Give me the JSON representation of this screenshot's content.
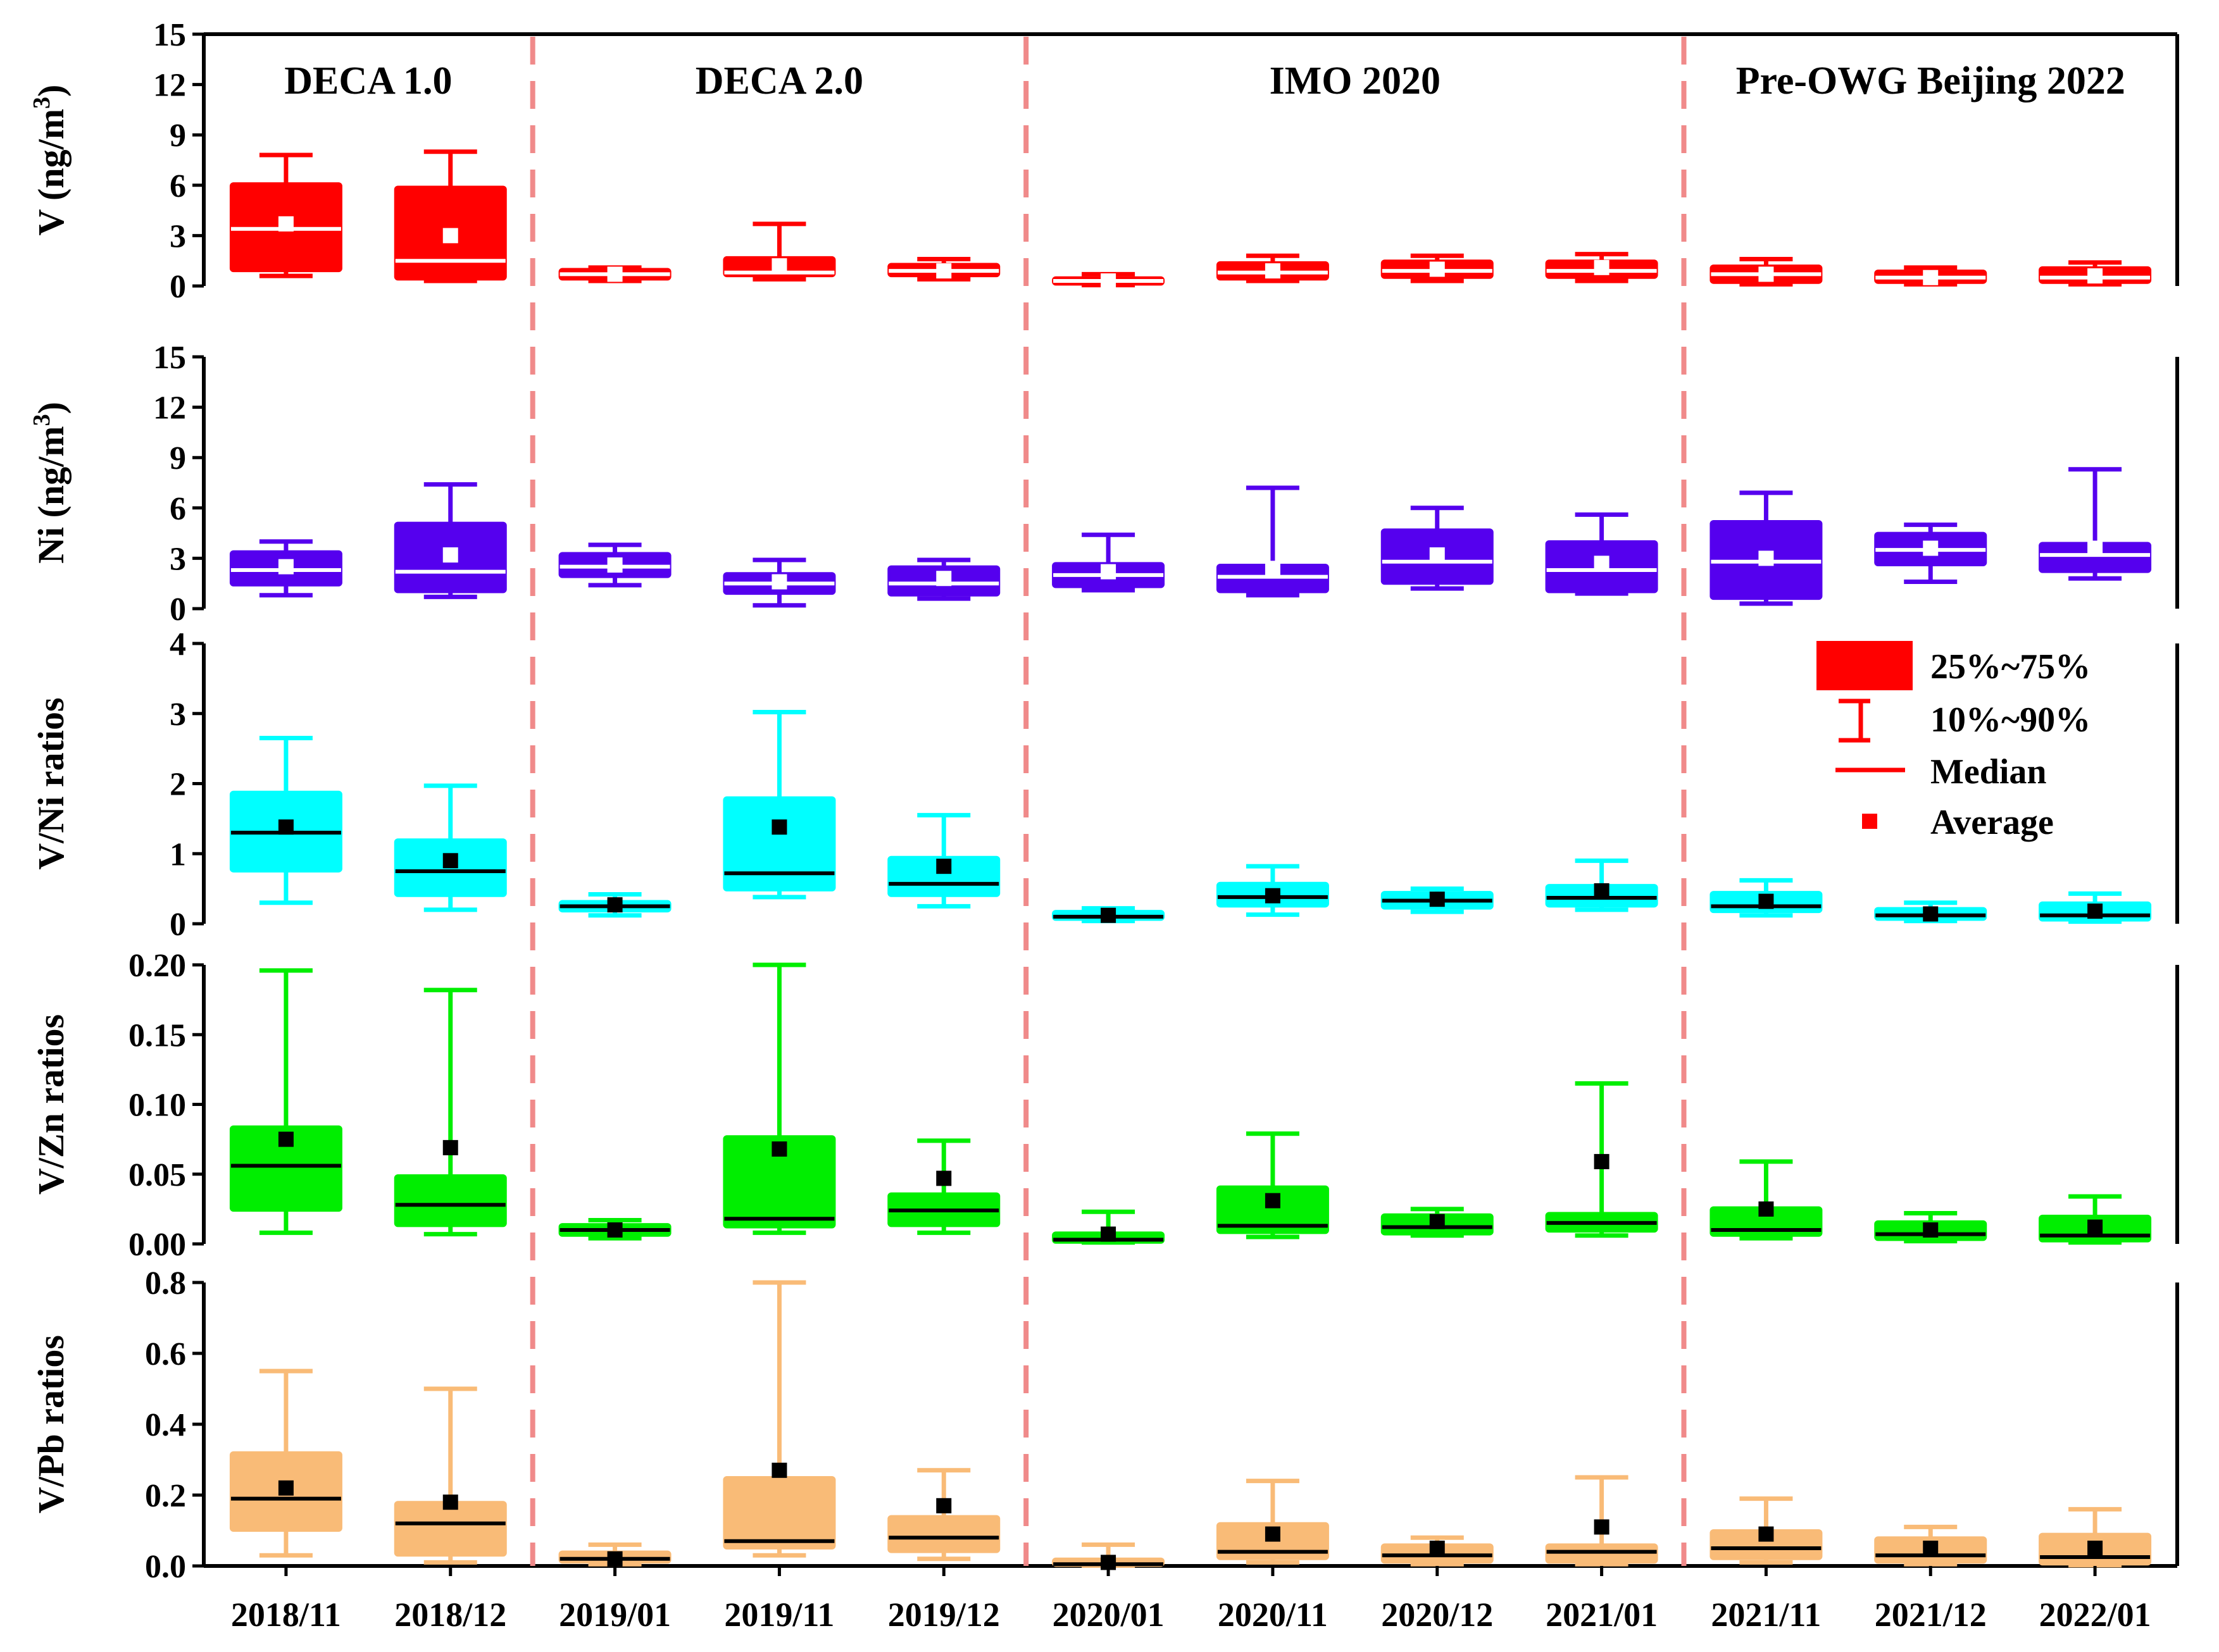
{
  "chart_data": {
    "type": "box",
    "categories": [
      "2018/11",
      "2018/12",
      "2019/01",
      "2019/11",
      "2019/12",
      "2020/01",
      "2020/11",
      "2020/12",
      "2021/01",
      "2021/11",
      "2021/12",
      "2022/01"
    ],
    "eras": [
      {
        "label": "DECA 1.0",
        "first": 0,
        "last": 1
      },
      {
        "label": "DECA 2.0",
        "first": 2,
        "last": 4
      },
      {
        "label": "IMO 2020",
        "first": 5,
        "last": 8
      },
      {
        "label": "Pre-OWG Beijing 2022",
        "first": 9,
        "last": 11
      }
    ],
    "legend": {
      "items": [
        "25%~75%",
        "10%~90%",
        "Median",
        "Average"
      ],
      "color": "#ff0000"
    },
    "panels": [
      {
        "id": "v",
        "ylabel": "V (ng/m³)",
        "ylabel_main": "V (ng/m",
        "ylabel_sup": "3",
        "ylabel_end": ")",
        "ylim": [
          0,
          15
        ],
        "yticks": [
          0,
          3,
          6,
          9,
          12,
          15
        ],
        "tick_format": "int",
        "color": "#ff0000",
        "median_color": "#ffffff",
        "mean_color": "#ffffff",
        "boxes": [
          {
            "q1": 0.9,
            "q3": 6.1,
            "median": 3.4,
            "p10": 0.6,
            "p90": 7.8,
            "mean": 3.7
          },
          {
            "q1": 0.4,
            "q3": 5.9,
            "median": 1.5,
            "p10": 0.3,
            "p90": 8.0,
            "mean": 3.0
          },
          {
            "q1": 0.4,
            "q3": 1.0,
            "median": 0.7,
            "p10": 0.3,
            "p90": 1.1,
            "mean": 0.7
          },
          {
            "q1": 0.6,
            "q3": 1.7,
            "median": 0.8,
            "p10": 0.4,
            "p90": 3.7,
            "mean": 1.2
          },
          {
            "q1": 0.6,
            "q3": 1.3,
            "median": 0.9,
            "p10": 0.4,
            "p90": 1.6,
            "mean": 0.9
          },
          {
            "q1": 0.1,
            "q3": 0.5,
            "median": 0.3,
            "p10": 0.05,
            "p90": 0.7,
            "mean": 0.3
          },
          {
            "q1": 0.4,
            "q3": 1.4,
            "median": 0.8,
            "p10": 0.3,
            "p90": 1.8,
            "mean": 0.9
          },
          {
            "q1": 0.5,
            "q3": 1.5,
            "median": 0.9,
            "p10": 0.3,
            "p90": 1.8,
            "mean": 1.0
          },
          {
            "q1": 0.5,
            "q3": 1.5,
            "median": 0.9,
            "p10": 0.3,
            "p90": 1.9,
            "mean": 1.1
          },
          {
            "q1": 0.2,
            "q3": 1.2,
            "median": 0.7,
            "p10": 0.1,
            "p90": 1.6,
            "mean": 0.7
          },
          {
            "q1": 0.2,
            "q3": 0.9,
            "median": 0.5,
            "p10": 0.1,
            "p90": 1.1,
            "mean": 0.5
          },
          {
            "q1": 0.2,
            "q3": 1.1,
            "median": 0.5,
            "p10": 0.1,
            "p90": 1.4,
            "mean": 0.6
          }
        ]
      },
      {
        "id": "ni",
        "ylabel": "Ni (ng/m³)",
        "ylabel_main": "Ni (ng/m",
        "ylabel_sup": "3",
        "ylabel_end": ")",
        "ylim": [
          0,
          15
        ],
        "yticks": [
          0,
          3,
          6,
          9,
          12,
          15
        ],
        "tick_format": "int",
        "color": "#5500ee",
        "median_color": "#ffffff",
        "mean_color": "#ffffff",
        "boxes": [
          {
            "q1": 1.4,
            "q3": 3.4,
            "median": 2.3,
            "p10": 0.8,
            "p90": 4.0,
            "mean": 2.5
          },
          {
            "q1": 1.0,
            "q3": 5.1,
            "median": 2.2,
            "p10": 0.7,
            "p90": 7.4,
            "mean": 3.2
          },
          {
            "q1": 1.9,
            "q3": 3.3,
            "median": 2.5,
            "p10": 1.4,
            "p90": 3.8,
            "mean": 2.6
          },
          {
            "q1": 0.9,
            "q3": 2.1,
            "median": 1.5,
            "p10": 0.2,
            "p90": 2.9,
            "mean": 1.6
          },
          {
            "q1": 0.8,
            "q3": 2.5,
            "median": 1.5,
            "p10": 0.6,
            "p90": 2.9,
            "mean": 1.8
          },
          {
            "q1": 1.3,
            "q3": 2.7,
            "median": 2.0,
            "p10": 1.1,
            "p90": 4.4,
            "mean": 2.2
          },
          {
            "q1": 1.0,
            "q3": 2.6,
            "median": 1.9,
            "p10": 0.8,
            "p90": 7.2,
            "mean": 2.4
          },
          {
            "q1": 1.5,
            "q3": 4.7,
            "median": 2.8,
            "p10": 1.2,
            "p90": 6.0,
            "mean": 3.2
          },
          {
            "q1": 1.0,
            "q3": 4.0,
            "median": 2.3,
            "p10": 0.9,
            "p90": 5.6,
            "mean": 2.7
          },
          {
            "q1": 0.6,
            "q3": 5.2,
            "median": 2.8,
            "p10": 0.3,
            "p90": 6.9,
            "mean": 3.0
          },
          {
            "q1": 2.6,
            "q3": 4.5,
            "median": 3.5,
            "p10": 1.6,
            "p90": 5.0,
            "mean": 3.6
          },
          {
            "q1": 2.2,
            "q3": 3.9,
            "median": 3.2,
            "p10": 1.8,
            "p90": 8.3,
            "mean": 3.6
          }
        ]
      },
      {
        "id": "v_ni",
        "ylabel": "V/Ni ratios",
        "ylabel_main": "V/Ni ratios",
        "ylim": [
          0,
          4
        ],
        "yticks": [
          0,
          1,
          2,
          3,
          4
        ],
        "tick_format": "int",
        "color": "#00ffff",
        "median_color": "#000000",
        "mean_color": "#000000",
        "boxes": [
          {
            "q1": 0.75,
            "q3": 1.88,
            "median": 1.3,
            "p10": 0.3,
            "p90": 2.65,
            "mean": 1.38
          },
          {
            "q1": 0.4,
            "q3": 1.2,
            "median": 0.75,
            "p10": 0.2,
            "p90": 1.97,
            "mean": 0.9
          },
          {
            "q1": 0.18,
            "q3": 0.32,
            "median": 0.25,
            "p10": 0.12,
            "p90": 0.42,
            "mean": 0.27
          },
          {
            "q1": 0.48,
            "q3": 1.8,
            "median": 0.72,
            "p10": 0.38,
            "p90": 3.02,
            "mean": 1.38
          },
          {
            "q1": 0.4,
            "q3": 0.95,
            "median": 0.57,
            "p10": 0.25,
            "p90": 1.55,
            "mean": 0.82
          },
          {
            "q1": 0.06,
            "q3": 0.18,
            "median": 0.1,
            "p10": 0.04,
            "p90": 0.22,
            "mean": 0.12
          },
          {
            "q1": 0.25,
            "q3": 0.58,
            "median": 0.38,
            "p10": 0.13,
            "p90": 0.82,
            "mean": 0.4
          },
          {
            "q1": 0.22,
            "q3": 0.45,
            "median": 0.33,
            "p10": 0.17,
            "p90": 0.5,
            "mean": 0.35
          },
          {
            "q1": 0.25,
            "q3": 0.55,
            "median": 0.37,
            "p10": 0.2,
            "p90": 0.9,
            "mean": 0.47
          },
          {
            "q1": 0.17,
            "q3": 0.45,
            "median": 0.25,
            "p10": 0.12,
            "p90": 0.62,
            "mean": 0.32
          },
          {
            "q1": 0.06,
            "q3": 0.22,
            "median": 0.12,
            "p10": 0.04,
            "p90": 0.3,
            "mean": 0.14
          },
          {
            "q1": 0.05,
            "q3": 0.3,
            "median": 0.12,
            "p10": 0.03,
            "p90": 0.43,
            "mean": 0.18
          }
        ]
      },
      {
        "id": "v_zn",
        "ylabel": "V/Zn ratios",
        "ylabel_main": "V/Zn ratios",
        "ylim": [
          0,
          0.2
        ],
        "yticks": [
          0,
          0.05,
          0.1,
          0.15,
          0.2
        ],
        "tick_format": "2dp",
        "color": "#00ee00",
        "median_color": "#000000",
        "mean_color": "#000000",
        "boxes": [
          {
            "q1": 0.024,
            "q3": 0.084,
            "median": 0.056,
            "p10": 0.008,
            "p90": 0.196,
            "mean": 0.075
          },
          {
            "q1": 0.013,
            "q3": 0.049,
            "median": 0.028,
            "p10": 0.007,
            "p90": 0.182,
            "mean": 0.069
          },
          {
            "q1": 0.006,
            "q3": 0.014,
            "median": 0.01,
            "p10": 0.004,
            "p90": 0.017,
            "mean": 0.01
          },
          {
            "q1": 0.012,
            "q3": 0.077,
            "median": 0.018,
            "p10": 0.008,
            "p90": 0.2,
            "mean": 0.068
          },
          {
            "q1": 0.013,
            "q3": 0.036,
            "median": 0.024,
            "p10": 0.008,
            "p90": 0.074,
            "mean": 0.047
          },
          {
            "q1": 0.001,
            "q3": 0.008,
            "median": 0.003,
            "p10": 0.001,
            "p90": 0.023,
            "mean": 0.007
          },
          {
            "q1": 0.008,
            "q3": 0.041,
            "median": 0.013,
            "p10": 0.005,
            "p90": 0.079,
            "mean": 0.031
          },
          {
            "q1": 0.007,
            "q3": 0.021,
            "median": 0.012,
            "p10": 0.006,
            "p90": 0.025,
            "mean": 0.016
          },
          {
            "q1": 0.009,
            "q3": 0.022,
            "median": 0.015,
            "p10": 0.006,
            "p90": 0.115,
            "mean": 0.059
          },
          {
            "q1": 0.006,
            "q3": 0.026,
            "median": 0.01,
            "p10": 0.004,
            "p90": 0.059,
            "mean": 0.025
          },
          {
            "q1": 0.003,
            "q3": 0.016,
            "median": 0.007,
            "p10": 0.002,
            "p90": 0.022,
            "mean": 0.01
          },
          {
            "q1": 0.002,
            "q3": 0.02,
            "median": 0.006,
            "p10": 0.001,
            "p90": 0.034,
            "mean": 0.012
          }
        ]
      },
      {
        "id": "v_pb",
        "ylabel": "V/Pb ratios",
        "ylabel_main": "V/Pb ratios",
        "ylim": [
          0,
          0.8
        ],
        "yticks": [
          0,
          0.2,
          0.4,
          0.6,
          0.8
        ],
        "tick_format": "1dp",
        "color": "#f9bb77",
        "median_color": "#000000",
        "mean_color": "#000000",
        "boxes": [
          {
            "q1": 0.1,
            "q3": 0.32,
            "median": 0.19,
            "p10": 0.03,
            "p90": 0.55,
            "mean": 0.22
          },
          {
            "q1": 0.03,
            "q3": 0.18,
            "median": 0.12,
            "p10": 0.01,
            "p90": 0.5,
            "mean": 0.18
          },
          {
            "q1": 0.01,
            "q3": 0.04,
            "median": 0.02,
            "p10": 0.005,
            "p90": 0.06,
            "mean": 0.02
          },
          {
            "q1": 0.05,
            "q3": 0.25,
            "median": 0.07,
            "p10": 0.03,
            "p90": 0.8,
            "mean": 0.27
          },
          {
            "q1": 0.04,
            "q3": 0.14,
            "median": 0.08,
            "p10": 0.02,
            "p90": 0.27,
            "mean": 0.17
          },
          {
            "q1": 0.001,
            "q3": 0.02,
            "median": 0.005,
            "p10": 0.001,
            "p90": 0.06,
            "mean": 0.01
          },
          {
            "q1": 0.02,
            "q3": 0.12,
            "median": 0.04,
            "p10": 0.01,
            "p90": 0.24,
            "mean": 0.09
          },
          {
            "q1": 0.01,
            "q3": 0.06,
            "median": 0.03,
            "p10": 0.005,
            "p90": 0.08,
            "mean": 0.05
          },
          {
            "q1": 0.01,
            "q3": 0.06,
            "median": 0.04,
            "p10": 0.005,
            "p90": 0.25,
            "mean": 0.11
          },
          {
            "q1": 0.02,
            "q3": 0.1,
            "median": 0.05,
            "p10": 0.01,
            "p90": 0.19,
            "mean": 0.09
          },
          {
            "q1": 0.01,
            "q3": 0.08,
            "median": 0.03,
            "p10": 0.005,
            "p90": 0.11,
            "mean": 0.05
          },
          {
            "q1": 0.005,
            "q3": 0.09,
            "median": 0.025,
            "p10": 0.002,
            "p90": 0.16,
            "mean": 0.05
          }
        ]
      }
    ]
  }
}
